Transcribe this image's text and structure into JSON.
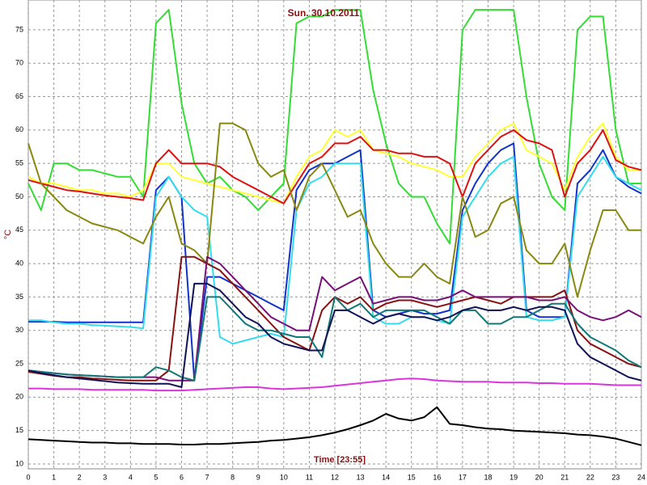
{
  "chart_data": {
    "type": "line",
    "title": "Sun. 30.10.2011",
    "y_label": "°C",
    "x_label": "Time [23:55]",
    "xlim": [
      0,
      24
    ],
    "ylim": [
      9.27,
      79.47
    ],
    "grid": true,
    "xticks": [
      0,
      1,
      2,
      3,
      4,
      5,
      6,
      7,
      8,
      9,
      10,
      11,
      12,
      13,
      14,
      15,
      16,
      17,
      18,
      19,
      20,
      21,
      22,
      23,
      24
    ],
    "yticks": [
      10,
      15,
      20,
      25,
      30,
      35,
      40,
      45,
      50,
      55,
      60,
      65,
      70,
      75
    ],
    "x": [
      0,
      0.5,
      1,
      1.5,
      2,
      2.5,
      3,
      3.5,
      4,
      4.5,
      5,
      5.5,
      6,
      6.5,
      7,
      7.5,
      8,
      8.5,
      9,
      9.5,
      10,
      10.5,
      11,
      11.5,
      12,
      12.5,
      13,
      13.5,
      14,
      14.5,
      15,
      15.5,
      16,
      16.5,
      17,
      17.5,
      18,
      18.5,
      19,
      19.5,
      20,
      20.5,
      21,
      21.5,
      22,
      22.5,
      23,
      23.5,
      24
    ],
    "series": [
      {
        "color": "#33dd33",
        "values": [
          52,
          48,
          55,
          55,
          54,
          54,
          53.5,
          53,
          53,
          50,
          76,
          78,
          64,
          55,
          52,
          53,
          51,
          50,
          48,
          50,
          52,
          76,
          77,
          77,
          78,
          78,
          78,
          66,
          58,
          52,
          50,
          50,
          46,
          43,
          75,
          78,
          78,
          78,
          78,
          65,
          55,
          50,
          48,
          75,
          77,
          77,
          60,
          52,
          52
        ]
      },
      {
        "color": "#ffff33",
        "values": [
          53,
          52,
          52,
          51.5,
          51,
          51,
          50.5,
          50.5,
          50,
          51,
          55,
          55,
          53,
          52.5,
          52,
          51.5,
          51,
          50.5,
          50,
          49.5,
          49,
          53,
          56,
          57,
          60,
          59,
          60,
          57,
          56.5,
          56,
          55,
          54.5,
          54,
          53,
          53,
          56,
          58,
          60,
          61,
          57,
          56,
          55,
          51,
          56,
          59,
          61,
          56,
          54,
          54
        ]
      },
      {
        "color": "#dd1111",
        "values": [
          52.5,
          52,
          51.5,
          51,
          50.8,
          50.5,
          50.2,
          50,
          49.8,
          49.5,
          55,
          57,
          55,
          55,
          55,
          54.5,
          53,
          52,
          51,
          50,
          49,
          52,
          55,
          56,
          58,
          58,
          59,
          57,
          57,
          56.5,
          56.5,
          56,
          56,
          55,
          50,
          55,
          57,
          59,
          60,
          58.5,
          58,
          57,
          50,
          55,
          57,
          60,
          55.5,
          54.5,
          54
        ]
      },
      {
        "color": "#1133cc",
        "values": [
          31.3,
          31.3,
          31.3,
          31.2,
          31.2,
          31.2,
          31.2,
          31.2,
          31.2,
          31.2,
          51,
          53,
          50,
          22.5,
          38,
          38,
          37,
          36,
          35,
          34,
          33,
          51,
          54,
          55,
          55,
          56,
          57,
          33,
          32,
          32.5,
          33,
          32.5,
          32.5,
          33,
          48,
          52,
          55,
          57,
          58,
          33,
          32,
          32,
          32,
          52,
          54,
          57,
          53,
          51.5,
          50.5
        ]
      },
      {
        "color": "#33ddee",
        "values": [
          31.5,
          31.5,
          31.2,
          31,
          31,
          30.8,
          30.7,
          30.6,
          30.5,
          30.3,
          50,
          53,
          50,
          48,
          47,
          29,
          28,
          28.5,
          29,
          29.5,
          29,
          48,
          52,
          53,
          55,
          55,
          55,
          32,
          31,
          31,
          32,
          32,
          31.5,
          31,
          47,
          50,
          53,
          55,
          56,
          32,
          31.5,
          31.5,
          32,
          50,
          53,
          56,
          53,
          52,
          51
        ]
      },
      {
        "color": "#888811",
        "values": [
          58,
          52,
          50,
          48,
          47,
          46,
          45.5,
          45,
          44,
          43,
          47,
          50,
          43,
          42,
          40,
          61,
          61,
          60,
          55,
          53,
          54,
          48,
          53,
          55,
          51,
          47,
          48,
          43,
          40,
          38,
          38,
          40,
          38,
          37,
          50,
          44,
          45,
          49,
          50,
          42,
          40,
          40,
          43,
          35,
          42,
          48,
          48,
          45,
          45
        ]
      },
      {
        "color": "#881111",
        "values": [
          23.8,
          23.5,
          23.2,
          23,
          23,
          22.8,
          22.7,
          22.6,
          22.5,
          22.5,
          22.5,
          24,
          41,
          41,
          40,
          39,
          37,
          35,
          33,
          31,
          29,
          28,
          27,
          33,
          35,
          34,
          35,
          33,
          34,
          34.5,
          34.5,
          34,
          33.5,
          34,
          34.5,
          35,
          34.5,
          34,
          35,
          35,
          35,
          35,
          36,
          30,
          28,
          27,
          26,
          25,
          24.5
        ]
      },
      {
        "color": "#771177",
        "values": [
          24,
          23.8,
          23.6,
          23.4,
          23.3,
          23.2,
          23.1,
          23,
          23,
          23,
          23,
          22.5,
          22.5,
          22.5,
          41,
          40,
          38,
          36,
          34,
          32,
          31,
          30,
          30,
          38,
          36,
          37,
          38,
          34,
          34.5,
          35,
          35,
          34.5,
          34.5,
          35,
          36,
          35,
          35,
          35,
          35,
          35,
          34.5,
          34.5,
          35,
          33,
          32,
          31.5,
          32,
          33,
          32
        ]
      },
      {
        "color": "#117777",
        "values": [
          24,
          23.8,
          23.6,
          23.4,
          23.3,
          23.2,
          23.1,
          23,
          23,
          23,
          24.5,
          24,
          23,
          22.5,
          35,
          35,
          33,
          31,
          30,
          30,
          29.5,
          29,
          29,
          26,
          35,
          33,
          34,
          32,
          33,
          33,
          33,
          33,
          32,
          31,
          33,
          33,
          31,
          31,
          32,
          32,
          33,
          34,
          34,
          31,
          29,
          28,
          27,
          25.5,
          24.5
        ]
      },
      {
        "color": "#111155",
        "values": [
          24,
          23.6,
          23.3,
          23,
          22.8,
          22.6,
          22.4,
          22.2,
          22.1,
          22,
          22,
          22,
          21.5,
          37,
          37,
          36,
          34,
          32,
          31,
          29,
          28,
          27.5,
          27,
          27,
          33,
          33,
          32,
          31,
          32,
          32.5,
          32,
          32,
          31.5,
          32,
          33,
          33.5,
          33,
          33,
          33.5,
          33,
          33.5,
          33.5,
          33,
          28,
          26,
          25,
          24,
          23,
          22.5
        ]
      },
      {
        "color": "#dd33dd",
        "values": [
          21.3,
          21.3,
          21.2,
          21.2,
          21.2,
          21.1,
          21.1,
          21.1,
          21.1,
          21.1,
          21,
          21,
          21,
          21.1,
          21.2,
          21.3,
          21.4,
          21.5,
          21.5,
          21.3,
          21.2,
          21.3,
          21.4,
          21.5,
          21.7,
          21.9,
          22.1,
          22.3,
          22.5,
          22.7,
          22.8,
          22.7,
          22.5,
          22.4,
          22.3,
          22.3,
          22.3,
          22.2,
          22.2,
          22.2,
          22.1,
          22.1,
          22,
          22,
          22,
          21.9,
          21.8,
          21.8,
          21.8
        ]
      },
      {
        "color": "#000000",
        "values": [
          13.7,
          13.6,
          13.5,
          13.4,
          13.3,
          13.2,
          13.2,
          13.1,
          13.1,
          13,
          13,
          13,
          12.9,
          12.9,
          13,
          13,
          13.1,
          13.2,
          13.3,
          13.5,
          13.6,
          13.8,
          14,
          14.3,
          14.7,
          15.2,
          15.8,
          16.5,
          17.5,
          16.8,
          16.5,
          17,
          18.5,
          16,
          15.8,
          15.5,
          15.3,
          15.2,
          15,
          14.9,
          14.8,
          14.7,
          14.6,
          14.4,
          14.3,
          14.1,
          13.8,
          13.3,
          12.8
        ]
      }
    ]
  }
}
